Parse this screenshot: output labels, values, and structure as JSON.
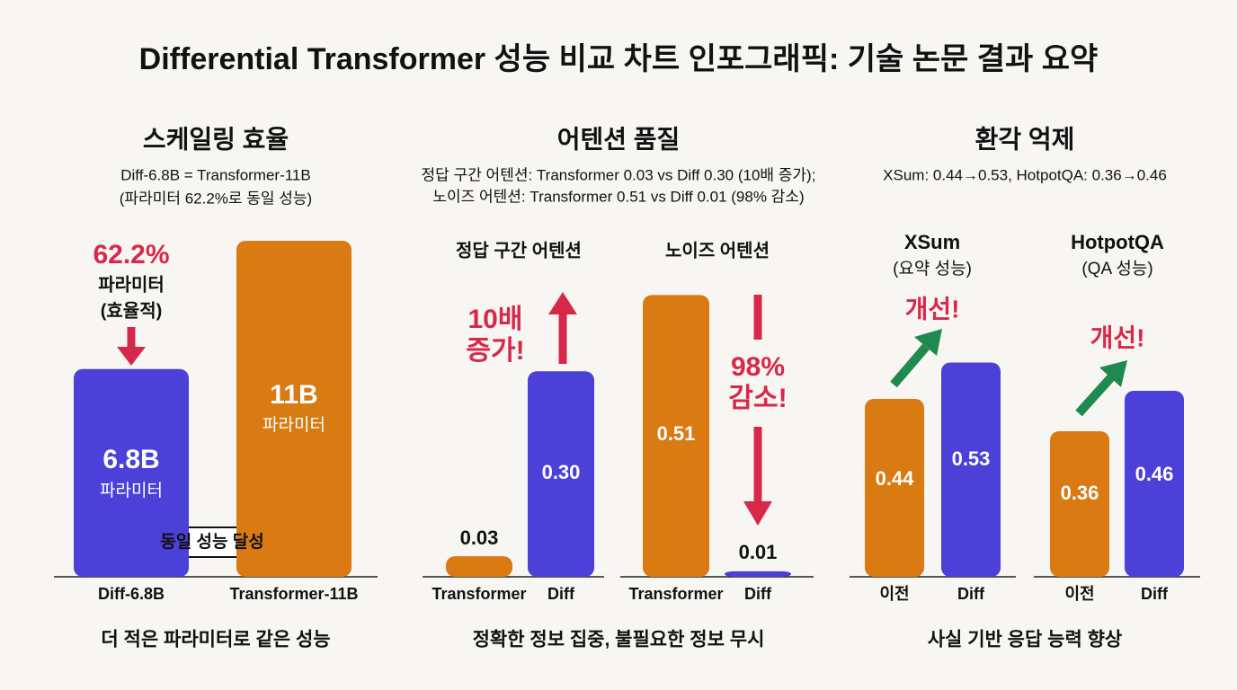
{
  "title": "Differential Transformer 성능 비교 차트 인포그래픽: 기술 논문 결과 요약",
  "panels": [
    {
      "heading": "스케일링 효율",
      "subtitle": [
        "Diff-6.8B = Transformer-11B",
        "(파라미터 62.2%로 동일 성능)"
      ],
      "footer": "더 적은 파라미터로 같은 성능"
    },
    {
      "heading": "어텐션 품질",
      "subtitle": [
        "정답 구간 어텐션: Transformer 0.03 vs Diff 0.30 (10배 증가);",
        "노이즈 어텐션: Transformer 0.51 vs Diff 0.01 (98% 감소)"
      ],
      "footer": "정확한 정보 집중, 불필요한 정보 무시"
    },
    {
      "heading": "환각 억제",
      "subtitle": [
        "XSum: 0.44→0.53, HotpotQA: 0.36→0.46"
      ],
      "footer": "사실 기반 응답 능력 향상"
    }
  ],
  "chart_data": [
    {
      "type": "bar",
      "categories": [
        "Diff-6.8B",
        "Transformer-11B"
      ],
      "values": [
        6.8,
        11
      ],
      "value_labels": [
        "6.8B",
        "11B"
      ],
      "unit_label": "파라미터",
      "ylim": [
        0,
        12
      ],
      "colors": [
        "#4b40d8",
        "#d97a12"
      ],
      "annotations": [
        "62.2%",
        "파라미터",
        "(효율적)",
        "동일 성능 달성"
      ]
    },
    {
      "type": "bar",
      "title": "정답 구간 어텐션",
      "categories": [
        "Transformer",
        "Diff"
      ],
      "values": [
        0.03,
        0.3
      ],
      "value_labels": [
        "0.03",
        "0.30"
      ],
      "ylim": [
        0,
        0.4
      ],
      "colors": [
        "#d97a12",
        "#4b40d8"
      ],
      "annotations": [
        "10배",
        "증가!"
      ]
    },
    {
      "type": "bar",
      "title": "노이즈 어텐션",
      "categories": [
        "Transformer",
        "Diff"
      ],
      "values": [
        0.51,
        0.01
      ],
      "value_labels": [
        "0.51",
        "0.01"
      ],
      "ylim": [
        0,
        0.6
      ],
      "colors": [
        "#d97a12",
        "#4b40d8"
      ],
      "annotations": [
        "98%",
        "감소!"
      ]
    },
    {
      "type": "bar",
      "title": "XSum",
      "subtitle": "(요약 성능)",
      "categories": [
        "이전",
        "Diff"
      ],
      "values": [
        0.44,
        0.53
      ],
      "value_labels": [
        "0.44",
        "0.53"
      ],
      "ylim": [
        0,
        0.6
      ],
      "colors": [
        "#d97a12",
        "#4b40d8"
      ],
      "annotations": [
        "개선!"
      ]
    },
    {
      "type": "bar",
      "title": "HotpotQA",
      "subtitle": "(QA 성능)",
      "categories": [
        "이전",
        "Diff"
      ],
      "values": [
        0.36,
        0.46
      ],
      "value_labels": [
        "0.36",
        "0.46"
      ],
      "ylim": [
        0,
        0.6
      ],
      "colors": [
        "#d97a12",
        "#4b40d8"
      ],
      "annotations": [
        "개선!"
      ]
    }
  ]
}
